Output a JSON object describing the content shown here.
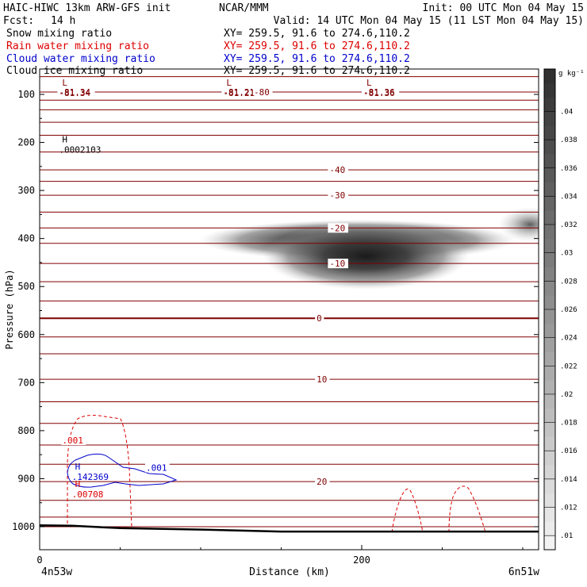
{
  "header": {
    "title_left": "HAIC-HIWC 13km ARW-GFS init",
    "org": "NCAR/MMM",
    "init": "Init: 00 UTC Mon 04 May 15",
    "fcst_label": "Fcst:",
    "fcst_value": "14 h",
    "valid": "Valid: 14 UTC Mon 04 May 15 (11 LST Mon 04 May 15)"
  },
  "fields": [
    {
      "name": "Snow mixing ratio",
      "xy": "XY= 259.5, 91.6 to 274.6,110.2",
      "color": "#000000"
    },
    {
      "name": "Rain water mixing ratio",
      "xy": "XY= 259.5, 91.6 to 274.6,110.2",
      "color": "#dd0000"
    },
    {
      "name": "Cloud water mixing ratio",
      "xy": "XY= 259.5, 91.6 to 274.6,110.2",
      "color": "#0000cc"
    },
    {
      "name": "Cloud ice mixing ratio",
      "xy": "XY= 259.5, 91.6 to 274.6,110.2",
      "color": "#000000"
    }
  ],
  "chart_data": {
    "type": "heatmap",
    "xlabel": "Distance (km)",
    "ylabel": "Pressure (hPa)",
    "xlim": [
      0,
      310
    ],
    "ylim": [
      1050,
      50
    ],
    "x_ticks": [
      0,
      200
    ],
    "y_ticks": [
      100,
      200,
      300,
      400,
      500,
      600,
      700,
      800,
      900,
      1000
    ],
    "x_endpoints": {
      "left": "4n53w",
      "right": "6n51w"
    },
    "colorbar": {
      "unit": "g kg⁻¹",
      "ticks": [
        0.01,
        0.012,
        0.014,
        0.016,
        0.018,
        0.02,
        0.022,
        0.024,
        0.026,
        0.028,
        0.03,
        0.032,
        0.034,
        0.036,
        0.038,
        0.04
      ],
      "tick_labels": [
        ".01",
        ".012",
        ".014",
        ".016",
        ".018",
        ".02",
        ".022",
        ".024",
        ".026",
        ".028",
        ".03",
        ".032",
        ".034",
        ".036",
        ".038",
        ".04"
      ],
      "range": [
        0.009,
        0.043
      ]
    },
    "isotherms_c": [
      {
        "value": -81.34,
        "label": "-81.34",
        "x": 12,
        "p": 95,
        "label_shown": true
      },
      {
        "value": -81.21,
        "label": "-81.21",
        "x": 114,
        "p": 95,
        "label_shown": true
      },
      {
        "value": -80,
        "label": "-80",
        "x": 133,
        "p": 95,
        "label_shown": true
      },
      {
        "value": -81.36,
        "label": "-81.36",
        "x": 201,
        "p": 95,
        "label_shown": true
      },
      {
        "value": -40,
        "label": "-40",
        "x": 180,
        "p": 257,
        "label_shown": true
      },
      {
        "value": -30,
        "label": "-30",
        "x": 180,
        "p": 310,
        "label_shown": true
      },
      {
        "value": -20,
        "label": "-20",
        "x": 180,
        "p": 378,
        "label_shown": true
      },
      {
        "value": -10,
        "label": "-10",
        "x": 180,
        "p": 452,
        "label_shown": true
      },
      {
        "value": 0,
        "label": "0",
        "x": 172,
        "p": 566,
        "label_shown": true
      },
      {
        "value": 10,
        "label": "10",
        "x": 172,
        "p": 693,
        "label_shown": true
      },
      {
        "value": 20,
        "label": "20",
        "x": 172,
        "p": 906,
        "label_shown": true
      }
    ],
    "isotherm_pressures": [
      63,
      95,
      112,
      132,
      158,
      185,
      220,
      257,
      281,
      310,
      345,
      378,
      410,
      452,
      490,
      530,
      566,
      605,
      640,
      693,
      740,
      785,
      830,
      870,
      906,
      945,
      980,
      1000
    ],
    "snow_max_core": {
      "x": 210,
      "p": 412,
      "value": 0.043
    },
    "extremes": [
      {
        "kind": "L",
        "label": "-81.34",
        "x": 12,
        "p": 95,
        "color": "#800000"
      },
      {
        "kind": "L",
        "label": "-81.21",
        "x": 114,
        "p": 95,
        "color": "#800000"
      },
      {
        "kind": "L",
        "label": "-81.36",
        "x": 201,
        "p": 95,
        "color": "#800000"
      },
      {
        "kind": "H",
        "label": ".0002103",
        "x": 12,
        "p": 213,
        "color": "#000000"
      },
      {
        "kind": "H",
        "label": ".142369",
        "x": 20,
        "p": 894,
        "color": "#0000cc"
      },
      {
        "kind": "H",
        "label": ".00708",
        "x": 20,
        "p": 931,
        "color": "#dd0000"
      }
    ],
    "contour_labels": [
      {
        "label": ".001",
        "x": 14,
        "p": 820,
        "color": "#dd0000"
      },
      {
        "label": ".001",
        "x": 66,
        "p": 877,
        "color": "#0000cc"
      }
    ],
    "terrain_surface_hpa": [
      [
        0,
        997
      ],
      [
        20,
        998
      ],
      [
        50,
        1003
      ],
      [
        100,
        1006
      ],
      [
        150,
        1010
      ],
      [
        200,
        1010
      ],
      [
        250,
        1010
      ],
      [
        310,
        1010
      ]
    ]
  }
}
